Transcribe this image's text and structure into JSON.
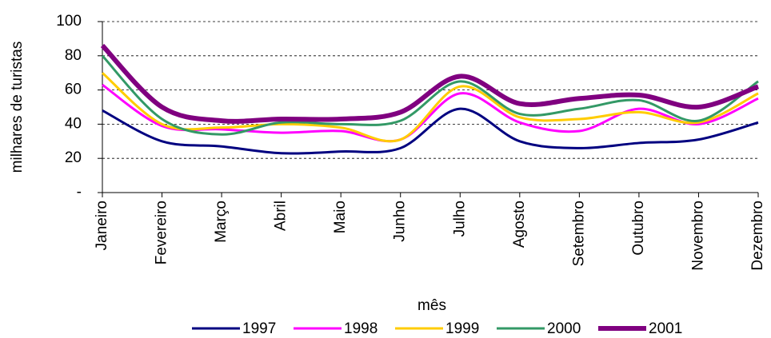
{
  "chart_data": {
    "type": "line",
    "y_label": "milhares de turistas",
    "x_label": "mês",
    "categories": [
      "Janeiro",
      "Fevereiro",
      "Março",
      "Abril",
      "Maio",
      "Junho",
      "Julho",
      "Agosto",
      "Setembro",
      "Outubro",
      "Novembro",
      "Dezembro"
    ],
    "series": [
      {
        "name": "1997",
        "color": "#000080",
        "values": [
          48,
          30,
          27,
          23,
          24,
          26,
          49,
          30,
          26,
          29,
          31,
          41
        ]
      },
      {
        "name": "1998",
        "color": "#ff00ff",
        "values": [
          63,
          39,
          37,
          35,
          36,
          31,
          58,
          41,
          36,
          49,
          40,
          55
        ]
      },
      {
        "name": "1999",
        "color": "#ffcc00",
        "values": [
          70,
          40,
          38,
          40,
          38,
          31,
          62,
          44,
          43,
          47,
          41,
          58
        ]
      },
      {
        "name": "2000",
        "color": "#339966",
        "values": [
          80,
          43,
          34,
          41,
          40,
          42,
          65,
          46,
          49,
          54,
          42,
          65
        ]
      },
      {
        "name": "2001",
        "color": "#800080",
        "values": [
          86,
          50,
          42,
          43,
          43,
          47,
          68,
          52,
          55,
          57,
          50,
          62
        ]
      }
    ],
    "ylim": [
      0,
      100
    ],
    "yticks": [
      {
        "value": 0,
        "label": "-"
      },
      20,
      40,
      60,
      80,
      100
    ],
    "grid": true,
    "legend": "bottom"
  }
}
